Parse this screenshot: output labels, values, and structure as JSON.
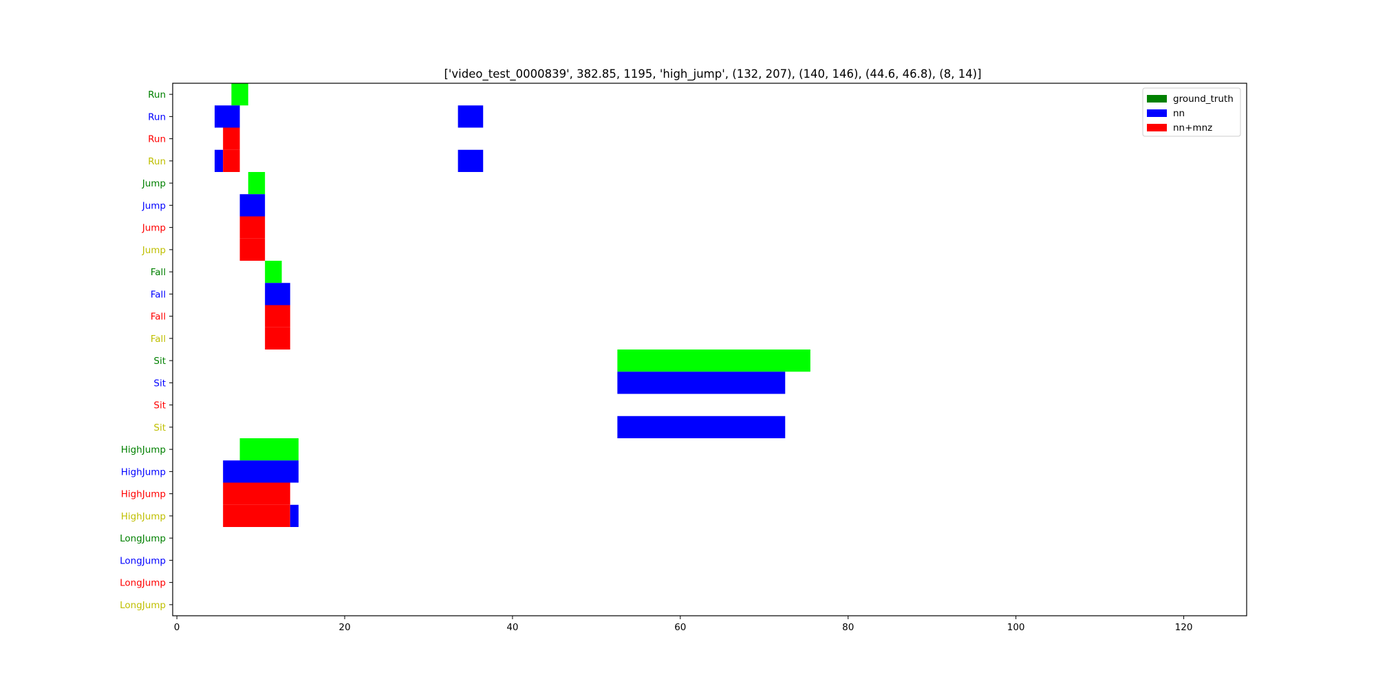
{
  "chart_data": {
    "type": "bar",
    "title": "['video_test_0000839', 382.85, 1195, 'high_jump', (132, 207), (140, 146), (44.6, 46.8), (8, 14)]",
    "xlabel": "",
    "ylabel": "",
    "xlim": [
      -0.5,
      127.5
    ],
    "x_ticks": [
      0,
      20,
      40,
      60,
      80,
      100,
      120
    ],
    "grid": false,
    "legend_position": "top-right",
    "legend": [
      {
        "label": "ground_truth",
        "color": "#008000"
      },
      {
        "label": "nn",
        "color": "#0000ff"
      },
      {
        "label": "nn+mnz",
        "color": "#ff0000"
      }
    ],
    "rows": [
      {
        "label": "Run",
        "label_color": "#008000"
      },
      {
        "label": "Run",
        "label_color": "#0000ff"
      },
      {
        "label": "Run",
        "label_color": "#ff0000"
      },
      {
        "label": "Run",
        "label_color": "#bfbf00"
      },
      {
        "label": "Jump",
        "label_color": "#008000"
      },
      {
        "label": "Jump",
        "label_color": "#0000ff"
      },
      {
        "label": "Jump",
        "label_color": "#ff0000"
      },
      {
        "label": "Jump",
        "label_color": "#bfbf00"
      },
      {
        "label": "Fall",
        "label_color": "#008000"
      },
      {
        "label": "Fall",
        "label_color": "#0000ff"
      },
      {
        "label": "Fall",
        "label_color": "#ff0000"
      },
      {
        "label": "Fall",
        "label_color": "#bfbf00"
      },
      {
        "label": "Sit",
        "label_color": "#008000"
      },
      {
        "label": "Sit",
        "label_color": "#0000ff"
      },
      {
        "label": "Sit",
        "label_color": "#ff0000"
      },
      {
        "label": "Sit",
        "label_color": "#bfbf00"
      },
      {
        "label": "HighJump",
        "label_color": "#008000"
      },
      {
        "label": "HighJump",
        "label_color": "#0000ff"
      },
      {
        "label": "HighJump",
        "label_color": "#ff0000"
      },
      {
        "label": "HighJump",
        "label_color": "#bfbf00"
      },
      {
        "label": "LongJump",
        "label_color": "#008000"
      },
      {
        "label": "LongJump",
        "label_color": "#0000ff"
      },
      {
        "label": "LongJump",
        "label_color": "#ff0000"
      },
      {
        "label": "LongJump",
        "label_color": "#bfbf00"
      }
    ],
    "segments": [
      {
        "row": 0,
        "start": 6.5,
        "end": 8.5,
        "color": "#00ff00"
      },
      {
        "row": 1,
        "start": 4.5,
        "end": 7.5,
        "color": "#0000ff"
      },
      {
        "row": 1,
        "start": 33.5,
        "end": 36.5,
        "color": "#0000ff"
      },
      {
        "row": 2,
        "start": 5.5,
        "end": 7.5,
        "color": "#ff0000"
      },
      {
        "row": 3,
        "start": 4.5,
        "end": 5.5,
        "color": "#0000ff"
      },
      {
        "row": 3,
        "start": 5.5,
        "end": 7.5,
        "color": "#ff0000"
      },
      {
        "row": 3,
        "start": 33.5,
        "end": 36.5,
        "color": "#0000ff"
      },
      {
        "row": 4,
        "start": 8.5,
        "end": 10.5,
        "color": "#00ff00"
      },
      {
        "row": 5,
        "start": 7.5,
        "end": 10.5,
        "color": "#0000ff"
      },
      {
        "row": 6,
        "start": 7.5,
        "end": 10.5,
        "color": "#ff0000"
      },
      {
        "row": 7,
        "start": 7.5,
        "end": 10.5,
        "color": "#ff0000"
      },
      {
        "row": 8,
        "start": 10.5,
        "end": 12.5,
        "color": "#00ff00"
      },
      {
        "row": 9,
        "start": 10.5,
        "end": 13.5,
        "color": "#0000ff"
      },
      {
        "row": 10,
        "start": 10.5,
        "end": 13.5,
        "color": "#ff0000"
      },
      {
        "row": 11,
        "start": 10.5,
        "end": 13.5,
        "color": "#ff0000"
      },
      {
        "row": 12,
        "start": 52.5,
        "end": 75.5,
        "color": "#00ff00"
      },
      {
        "row": 13,
        "start": 52.5,
        "end": 72.5,
        "color": "#0000ff"
      },
      {
        "row": 15,
        "start": 52.5,
        "end": 72.5,
        "color": "#0000ff"
      },
      {
        "row": 16,
        "start": 7.5,
        "end": 14.5,
        "color": "#00ff00"
      },
      {
        "row": 17,
        "start": 5.5,
        "end": 14.5,
        "color": "#0000ff"
      },
      {
        "row": 18,
        "start": 5.5,
        "end": 13.5,
        "color": "#ff0000"
      },
      {
        "row": 19,
        "start": 5.5,
        "end": 13.5,
        "color": "#ff0000"
      },
      {
        "row": 19,
        "start": 13.5,
        "end": 14.5,
        "color": "#0000ff"
      }
    ]
  }
}
